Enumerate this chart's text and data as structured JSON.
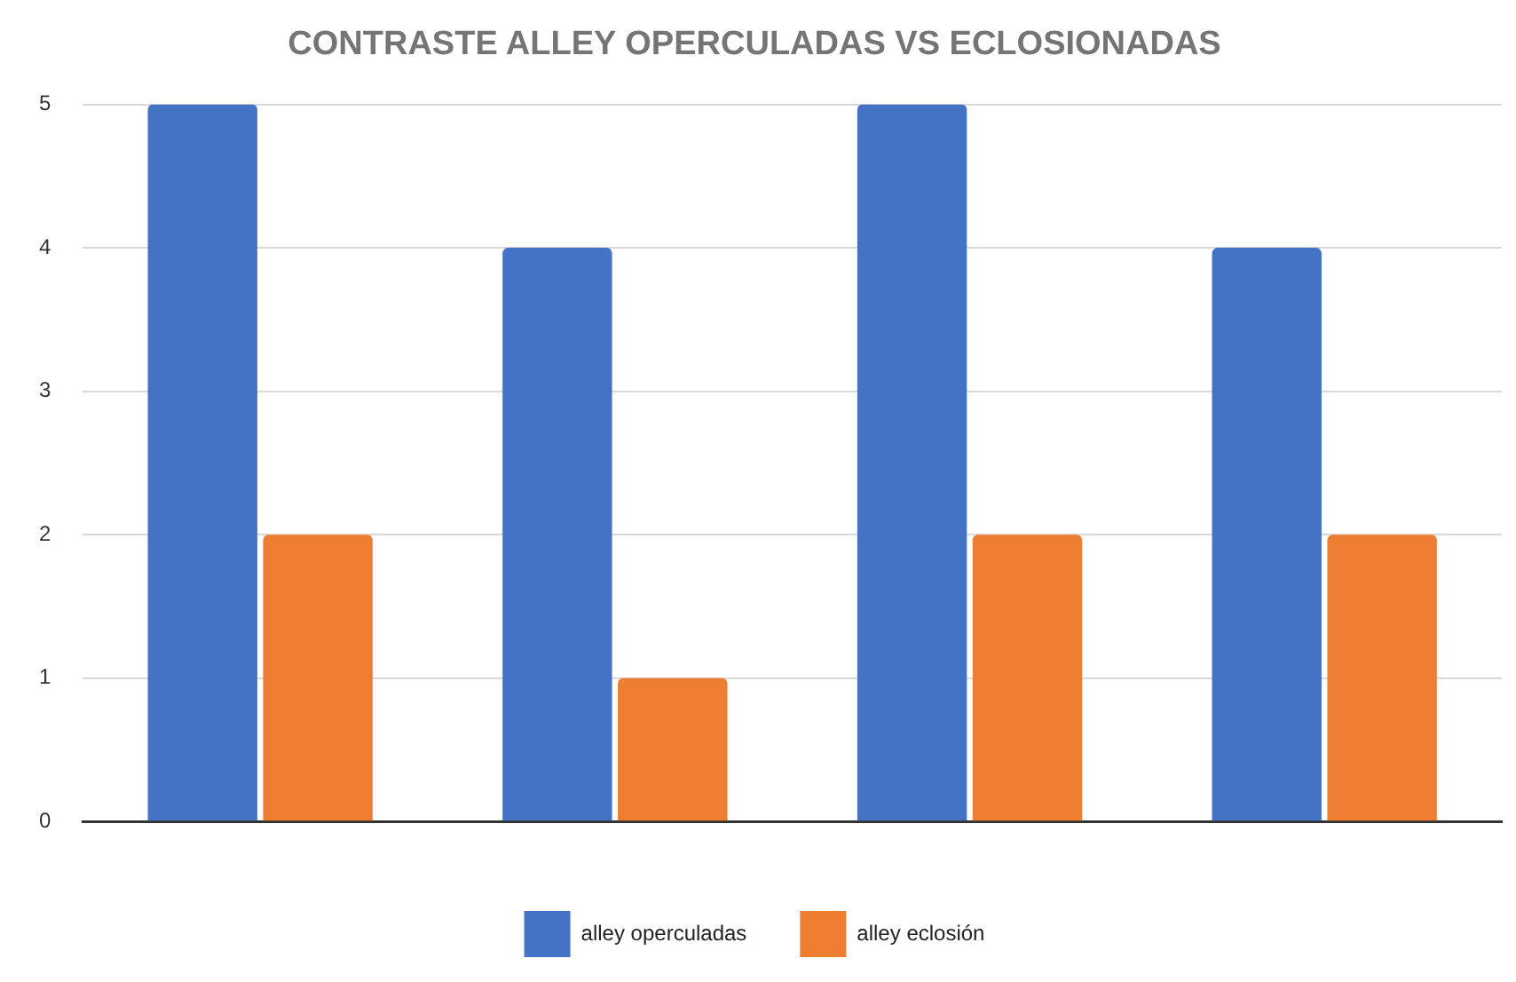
{
  "chart_data": {
    "type": "bar",
    "title": "CONTRASTE ALLEY OPERCULADAS VS ECLOSIONADAS",
    "categories": [
      null,
      null,
      null,
      null
    ],
    "series": [
      {
        "name": "alley operculadas",
        "color": "#4472c4",
        "values": [
          5,
          4,
          5,
          4
        ]
      },
      {
        "name": "alley eclosión",
        "color": "#ed7d31",
        "values": [
          2,
          1,
          2,
          2
        ]
      }
    ],
    "ylim": [
      0,
      5
    ],
    "yticks": [
      0,
      1,
      2,
      3,
      4,
      5
    ],
    "grid": "y",
    "legend": "bottom"
  }
}
